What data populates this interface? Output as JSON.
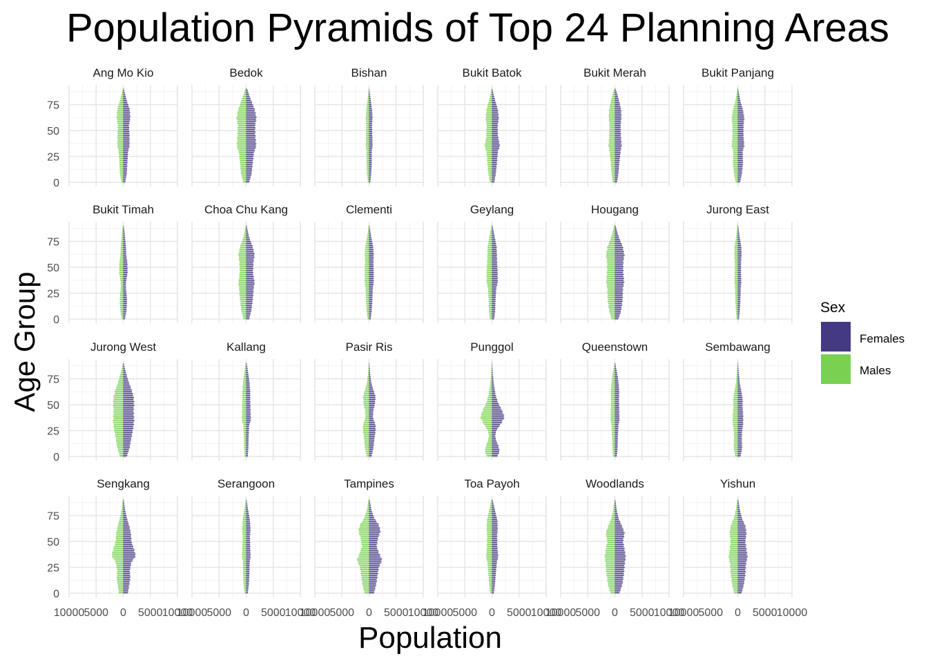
{
  "chart_data": {
    "type": "bar",
    "title": "Population Pyramids of Top 24 Planning Areas",
    "xlabel": "Population",
    "ylabel": "Age Group",
    "xlim": [
      -10000,
      10000
    ],
    "ylim": [
      0,
      90
    ],
    "x_ticks": [
      "10000",
      "5000",
      "0",
      "5000",
      "10000"
    ],
    "y_ticks": [
      "0",
      "25",
      "50",
      "75"
    ],
    "grid": true,
    "legend": {
      "title": "Sex",
      "position": "right",
      "entries": [
        {
          "label": "Females",
          "color": "#443A83"
        },
        {
          "label": "Males",
          "color": "#7AD151"
        }
      ]
    },
    "age_step": 1,
    "panels": [
      {
        "name": "Ang Mo Kio",
        "peaks": [
          [
            0,
            350
          ],
          [
            8,
            650
          ],
          [
            18,
            750
          ],
          [
            30,
            900
          ],
          [
            35,
            1150
          ],
          [
            45,
            1150
          ],
          [
            55,
            1050
          ],
          [
            62,
            1300
          ],
          [
            70,
            1200
          ],
          [
            78,
            700
          ],
          [
            85,
            350
          ],
          [
            90,
            100
          ]
        ]
      },
      {
        "name": "Bedok",
        "peaks": [
          [
            0,
            550
          ],
          [
            8,
            1000
          ],
          [
            18,
            1200
          ],
          [
            28,
            1400
          ],
          [
            35,
            1850
          ],
          [
            45,
            1700
          ],
          [
            55,
            1650
          ],
          [
            62,
            1900
          ],
          [
            70,
            1600
          ],
          [
            78,
            1000
          ],
          [
            85,
            500
          ],
          [
            90,
            200
          ]
        ]
      },
      {
        "name": "Bishan",
        "peaks": [
          [
            0,
            220
          ],
          [
            8,
            400
          ],
          [
            18,
            500
          ],
          [
            30,
            500
          ],
          [
            35,
            650
          ],
          [
            45,
            600
          ],
          [
            55,
            550
          ],
          [
            62,
            650
          ],
          [
            70,
            550
          ],
          [
            78,
            350
          ],
          [
            85,
            180
          ],
          [
            90,
            60
          ]
        ]
      },
      {
        "name": "Bukit Batok",
        "peaks": [
          [
            0,
            420
          ],
          [
            8,
            700
          ],
          [
            18,
            900
          ],
          [
            30,
            1100
          ],
          [
            35,
            1450
          ],
          [
            45,
            1100
          ],
          [
            55,
            1050
          ],
          [
            62,
            1250
          ],
          [
            70,
            1100
          ],
          [
            78,
            650
          ],
          [
            85,
            300
          ],
          [
            90,
            100
          ]
        ]
      },
      {
        "name": "Bukit Merah",
        "peaks": [
          [
            0,
            400
          ],
          [
            8,
            650
          ],
          [
            18,
            800
          ],
          [
            30,
            1050
          ],
          [
            35,
            1250
          ],
          [
            45,
            1100
          ],
          [
            55,
            1050
          ],
          [
            62,
            1200
          ],
          [
            70,
            1150
          ],
          [
            78,
            800
          ],
          [
            85,
            450
          ],
          [
            90,
            150
          ]
        ]
      },
      {
        "name": "Bukit Panjang",
        "peaks": [
          [
            0,
            420
          ],
          [
            8,
            750
          ],
          [
            18,
            950
          ],
          [
            30,
            900
          ],
          [
            35,
            1200
          ],
          [
            45,
            1050
          ],
          [
            55,
            1050
          ],
          [
            62,
            1200
          ],
          [
            70,
            950
          ],
          [
            78,
            500
          ],
          [
            85,
            250
          ],
          [
            90,
            80
          ]
        ]
      },
      {
        "name": "Bukit Timah",
        "peaks": [
          [
            0,
            300
          ],
          [
            8,
            600
          ],
          [
            18,
            700
          ],
          [
            30,
            500
          ],
          [
            35,
            500
          ],
          [
            45,
            800
          ],
          [
            55,
            750
          ],
          [
            62,
            550
          ],
          [
            70,
            500
          ],
          [
            78,
            350
          ],
          [
            85,
            220
          ],
          [
            90,
            80
          ]
        ]
      },
      {
        "name": "Choa Chu Kang",
        "peaks": [
          [
            0,
            550
          ],
          [
            8,
            950
          ],
          [
            18,
            1200
          ],
          [
            30,
            1400
          ],
          [
            35,
            1550
          ],
          [
            45,
            1250
          ],
          [
            55,
            1350
          ],
          [
            62,
            1550
          ],
          [
            70,
            1200
          ],
          [
            78,
            600
          ],
          [
            85,
            300
          ],
          [
            90,
            100
          ]
        ]
      },
      {
        "name": "Clementi",
        "peaks": [
          [
            0,
            300
          ],
          [
            8,
            500
          ],
          [
            18,
            600
          ],
          [
            30,
            700
          ],
          [
            35,
            850
          ],
          [
            45,
            850
          ],
          [
            55,
            800
          ],
          [
            62,
            850
          ],
          [
            70,
            750
          ],
          [
            78,
            450
          ],
          [
            85,
            220
          ],
          [
            90,
            80
          ]
        ]
      },
      {
        "name": "Geylang",
        "peaks": [
          [
            0,
            400
          ],
          [
            8,
            600
          ],
          [
            18,
            650
          ],
          [
            30,
            800
          ],
          [
            35,
            1050
          ],
          [
            45,
            1050
          ],
          [
            55,
            950
          ],
          [
            62,
            900
          ],
          [
            70,
            850
          ],
          [
            78,
            550
          ],
          [
            85,
            300
          ],
          [
            90,
            100
          ]
        ]
      },
      {
        "name": "Hougang",
        "peaks": [
          [
            0,
            650
          ],
          [
            8,
            1150
          ],
          [
            18,
            1400
          ],
          [
            30,
            1500
          ],
          [
            35,
            1700
          ],
          [
            45,
            1550
          ],
          [
            55,
            1550
          ],
          [
            62,
            1750
          ],
          [
            70,
            1450
          ],
          [
            78,
            800
          ],
          [
            85,
            400
          ],
          [
            90,
            150
          ]
        ]
      },
      {
        "name": "Jurong East",
        "peaks": [
          [
            0,
            220
          ],
          [
            8,
            380
          ],
          [
            18,
            480
          ],
          [
            30,
            550
          ],
          [
            35,
            650
          ],
          [
            45,
            600
          ],
          [
            55,
            600
          ],
          [
            62,
            700
          ],
          [
            70,
            650
          ],
          [
            78,
            380
          ],
          [
            85,
            200
          ],
          [
            90,
            80
          ]
        ]
      },
      {
        "name": "Jurong West",
        "peaks": [
          [
            0,
            650
          ],
          [
            8,
            1150
          ],
          [
            18,
            1500
          ],
          [
            28,
            1850
          ],
          [
            35,
            2000
          ],
          [
            45,
            1900
          ],
          [
            50,
            2000
          ],
          [
            58,
            1900
          ],
          [
            65,
            1500
          ],
          [
            72,
            1000
          ],
          [
            80,
            550
          ],
          [
            85,
            300
          ],
          [
            90,
            100
          ]
        ]
      },
      {
        "name": "Kallang",
        "peaks": [
          [
            0,
            300
          ],
          [
            8,
            400
          ],
          [
            18,
            450
          ],
          [
            30,
            550
          ],
          [
            35,
            850
          ],
          [
            45,
            800
          ],
          [
            55,
            750
          ],
          [
            62,
            750
          ],
          [
            70,
            650
          ],
          [
            78,
            450
          ],
          [
            85,
            250
          ],
          [
            90,
            100
          ]
        ]
      },
      {
        "name": "Pasir Ris",
        "peaks": [
          [
            0,
            450
          ],
          [
            8,
            800
          ],
          [
            18,
            1000
          ],
          [
            25,
            1200
          ],
          [
            30,
            1200
          ],
          [
            38,
            700
          ],
          [
            45,
            800
          ],
          [
            50,
            1050
          ],
          [
            58,
            1200
          ],
          [
            65,
            750
          ],
          [
            72,
            400
          ],
          [
            80,
            200
          ],
          [
            90,
            60
          ]
        ]
      },
      {
        "name": "Punggol",
        "peaks": [
          [
            0,
            1000
          ],
          [
            5,
            1400
          ],
          [
            10,
            1200
          ],
          [
            15,
            800
          ],
          [
            20,
            600
          ],
          [
            25,
            800
          ],
          [
            32,
            1700
          ],
          [
            38,
            2300
          ],
          [
            45,
            1800
          ],
          [
            52,
            1100
          ],
          [
            60,
            650
          ],
          [
            70,
            350
          ],
          [
            80,
            150
          ],
          [
            90,
            40
          ]
        ]
      },
      {
        "name": "Queenstown",
        "peaks": [
          [
            0,
            350
          ],
          [
            8,
            500
          ],
          [
            18,
            550
          ],
          [
            30,
            650
          ],
          [
            35,
            850
          ],
          [
            45,
            800
          ],
          [
            55,
            750
          ],
          [
            62,
            800
          ],
          [
            70,
            700
          ],
          [
            78,
            500
          ],
          [
            85,
            250
          ],
          [
            90,
            100
          ]
        ]
      },
      {
        "name": "Sembawang",
        "peaks": [
          [
            0,
            500
          ],
          [
            8,
            800
          ],
          [
            18,
            750
          ],
          [
            25,
            800
          ],
          [
            32,
            1000
          ],
          [
            40,
            1000
          ],
          [
            48,
            850
          ],
          [
            55,
            900
          ],
          [
            62,
            700
          ],
          [
            70,
            400
          ],
          [
            80,
            200
          ],
          [
            90,
            50
          ]
        ]
      },
      {
        "name": "Sengkang",
        "peaks": [
          [
            0,
            850
          ],
          [
            8,
            1100
          ],
          [
            15,
            1300
          ],
          [
            22,
            1200
          ],
          [
            30,
            1500
          ],
          [
            36,
            2300
          ],
          [
            42,
            2000
          ],
          [
            50,
            1500
          ],
          [
            58,
            1400
          ],
          [
            65,
            1100
          ],
          [
            72,
            700
          ],
          [
            80,
            350
          ],
          [
            90,
            100
          ]
        ]
      },
      {
        "name": "Serangoon",
        "peaks": [
          [
            0,
            300
          ],
          [
            8,
            500
          ],
          [
            18,
            600
          ],
          [
            30,
            650
          ],
          [
            35,
            800
          ],
          [
            45,
            750
          ],
          [
            55,
            700
          ],
          [
            62,
            800
          ],
          [
            70,
            700
          ],
          [
            78,
            450
          ],
          [
            85,
            220
          ],
          [
            90,
            80
          ]
        ]
      },
      {
        "name": "Tampines",
        "peaks": [
          [
            0,
            900
          ],
          [
            8,
            1300
          ],
          [
            18,
            1600
          ],
          [
            25,
            1800
          ],
          [
            32,
            2400
          ],
          [
            38,
            1900
          ],
          [
            45,
            1400
          ],
          [
            52,
            1600
          ],
          [
            60,
            2100
          ],
          [
            66,
            1800
          ],
          [
            72,
            1000
          ],
          [
            80,
            450
          ],
          [
            90,
            120
          ]
        ]
      },
      {
        "name": "Toa Payoh",
        "peaks": [
          [
            0,
            350
          ],
          [
            8,
            550
          ],
          [
            18,
            700
          ],
          [
            30,
            900
          ],
          [
            35,
            1150
          ],
          [
            45,
            1000
          ],
          [
            55,
            950
          ],
          [
            62,
            1050
          ],
          [
            70,
            1000
          ],
          [
            78,
            650
          ],
          [
            85,
            350
          ],
          [
            90,
            120
          ]
        ]
      },
      {
        "name": "Woodlands",
        "peaks": [
          [
            0,
            850
          ],
          [
            8,
            1350
          ],
          [
            18,
            1650
          ],
          [
            28,
            1800
          ],
          [
            35,
            2000
          ],
          [
            42,
            1800
          ],
          [
            50,
            1500
          ],
          [
            58,
            1800
          ],
          [
            65,
            1300
          ],
          [
            72,
            700
          ],
          [
            80,
            350
          ],
          [
            90,
            100
          ]
        ]
      },
      {
        "name": "Yishun",
        "peaks": [
          [
            0,
            700
          ],
          [
            8,
            1100
          ],
          [
            18,
            1400
          ],
          [
            28,
            1500
          ],
          [
            35,
            1800
          ],
          [
            42,
            1600
          ],
          [
            50,
            1400
          ],
          [
            58,
            1600
          ],
          [
            65,
            1400
          ],
          [
            72,
            800
          ],
          [
            80,
            400
          ],
          [
            90,
            120
          ]
        ]
      }
    ]
  }
}
